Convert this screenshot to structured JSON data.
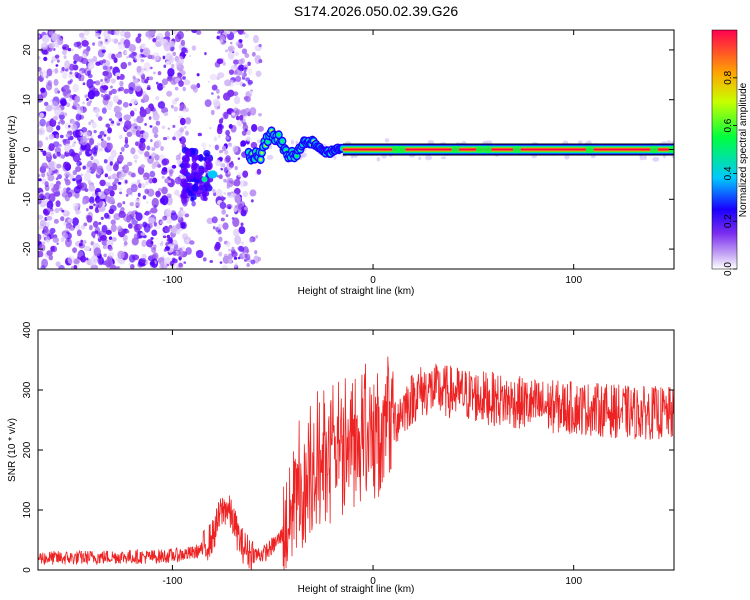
{
  "figure": {
    "title": "S174.2026.050.02.39.G26"
  },
  "chart_data": [
    {
      "type": "heatmap",
      "name": "spectrogram",
      "title": "",
      "xlabel": "Height of straight line (km)",
      "ylabel": "Frequency (Hz)",
      "xlim": [
        -167,
        150
      ],
      "ylim": [
        -24,
        24
      ],
      "xticks": [
        -100,
        0,
        100
      ],
      "yticks": [
        -20,
        -10,
        0,
        10,
        20
      ],
      "description_of_signal": {
        "scatter_noise_region_km": [
          -167,
          -60
        ],
        "signal_line_frequency_hz": 0,
        "signal_starts_km": -62,
        "wandering_signal_km": [
          -62,
          -15
        ],
        "stable_line_km": [
          -15,
          150
        ]
      },
      "colorbar": {
        "label": "Normalized spectral amplitude",
        "range": [
          0.0,
          1.0
        ],
        "ticks": [
          0.0,
          0.2,
          0.4,
          0.6,
          0.8
        ],
        "tick_labels": [
          "0.0",
          "0.2",
          "0.4",
          "0.6",
          "0.8"
        ],
        "colors": [
          "#ffffff",
          "#c7a8f5",
          "#7a2cf0",
          "#1a00ff",
          "#00c8ff",
          "#00ff40",
          "#c8ff00",
          "#ffa500",
          "#ff0050"
        ]
      }
    },
    {
      "type": "line",
      "name": "snr",
      "title": "",
      "xlabel": "Height of straight line (km)",
      "ylabel": "SNR (10 * v/v)",
      "xlim": [
        -167,
        150
      ],
      "ylim": [
        0,
        400
      ],
      "xticks": [
        -100,
        0,
        100
      ],
      "yticks": [
        0,
        100,
        200,
        300,
        400
      ],
      "color": "#ee2222",
      "series": [
        {
          "name": "SNR",
          "x": [
            -167,
            -150,
            -130,
            -110,
            -100,
            -90,
            -85,
            -80,
            -76,
            -73,
            -70,
            -66,
            -62,
            -58,
            -54,
            -50,
            -46,
            -42,
            -38,
            -34,
            -30,
            -26,
            -22,
            -18,
            -14,
            -10,
            -6,
            -2,
            2,
            6,
            10,
            14,
            18,
            22,
            26,
            30,
            35,
            40,
            50,
            60,
            70,
            80,
            90,
            100,
            110,
            120,
            130,
            140,
            150
          ],
          "y": [
            20,
            20,
            22,
            22,
            24,
            28,
            35,
            55,
            95,
            105,
            85,
            45,
            30,
            25,
            28,
            40,
            55,
            80,
            110,
            130,
            150,
            160,
            165,
            170,
            180,
            190,
            200,
            200,
            205,
            220,
            245,
            265,
            280,
            295,
            300,
            300,
            298,
            296,
            290,
            285,
            280,
            275,
            272,
            270,
            268,
            265,
            262,
            262,
            260
          ]
        }
      ]
    }
  ]
}
